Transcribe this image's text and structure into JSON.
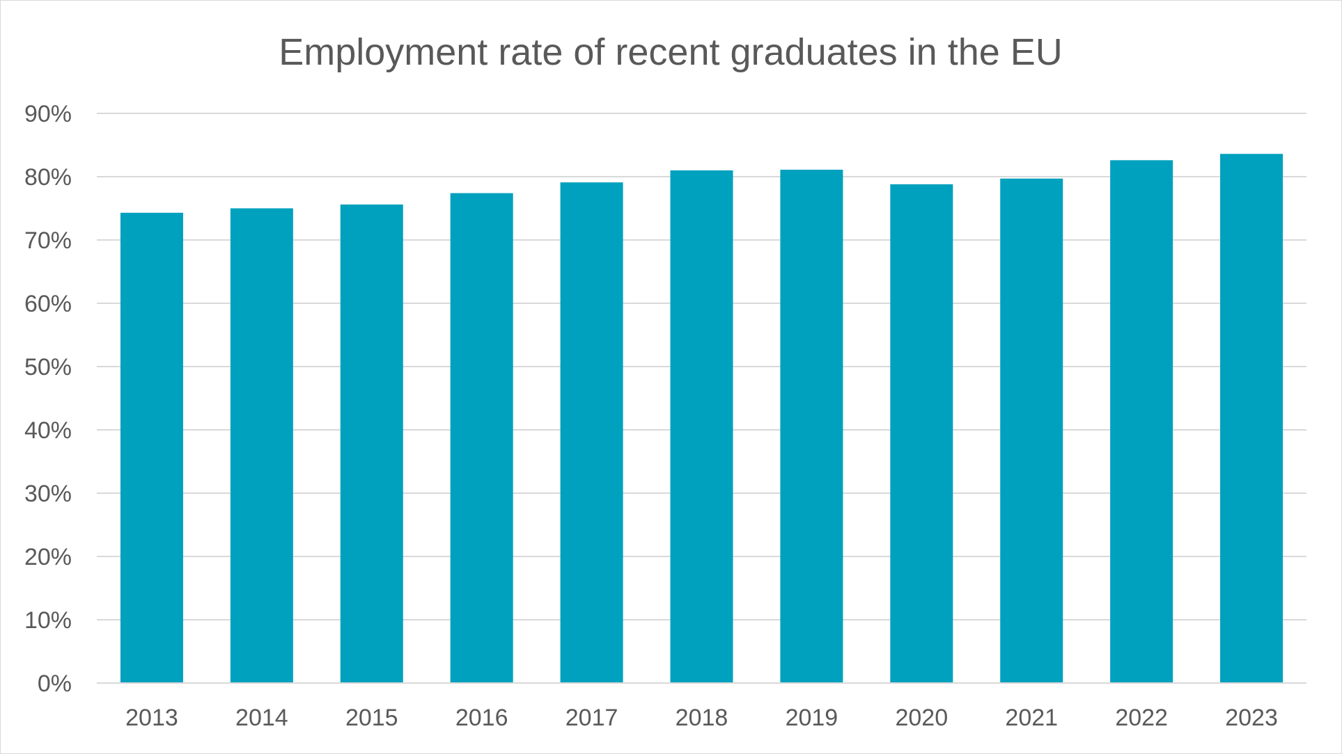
{
  "chart_data": {
    "type": "bar",
    "title": "Employment rate of recent graduates in the EU",
    "categories": [
      "2013",
      "2014",
      "2015",
      "2016",
      "2017",
      "2018",
      "2019",
      "2020",
      "2021",
      "2022",
      "2023"
    ],
    "values": [
      74.3,
      75.0,
      75.6,
      77.4,
      79.1,
      81.0,
      81.1,
      78.8,
      79.7,
      82.6,
      83.6
    ],
    "ylim": [
      0,
      90
    ],
    "yticks": [
      0,
      10,
      20,
      30,
      40,
      50,
      60,
      70,
      80,
      90
    ],
    "ytick_labels": [
      "0%",
      "10%",
      "20%",
      "30%",
      "40%",
      "50%",
      "60%",
      "70%",
      "80%",
      "90%"
    ],
    "xlabel": "",
    "ylabel": "",
    "grid": true,
    "legend": "none",
    "colors": {
      "bar": "#00A1BE",
      "text": "#595959",
      "grid": "#D9D9D9"
    }
  }
}
